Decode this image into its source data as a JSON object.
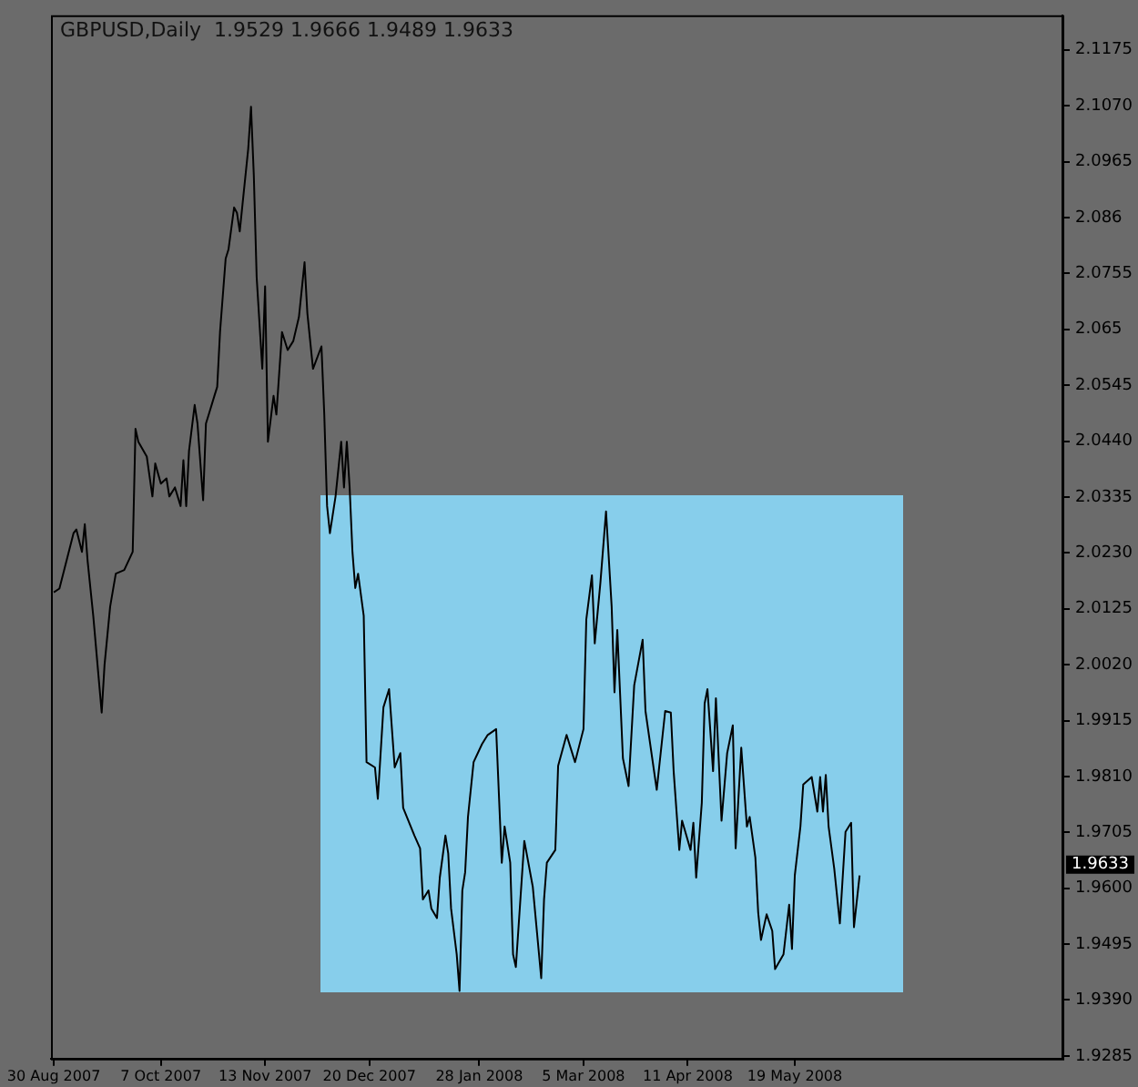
{
  "chart_data": {
    "type": "line",
    "title": "GBPUSD,Daily  1.9529 1.9666 1.9489 1.9633",
    "x": [
      "2007-08-30",
      "2007-09-01",
      "2007-09-06",
      "2007-09-07",
      "2007-09-09",
      "2007-09-10",
      "2007-09-11",
      "2007-09-13",
      "2007-09-16",
      "2007-09-17",
      "2007-09-19",
      "2007-09-21",
      "2007-09-24",
      "2007-09-27",
      "2007-09-28",
      "2007-09-29",
      "2007-10-02",
      "2007-10-04",
      "2007-10-05",
      "2007-10-07",
      "2007-10-09",
      "2007-10-10",
      "2007-10-12",
      "2007-10-14",
      "2007-10-15",
      "2007-10-16",
      "2007-10-17",
      "2007-10-19",
      "2007-10-20",
      "2007-10-22",
      "2007-10-23",
      "2007-10-24",
      "2007-10-26",
      "2007-10-27",
      "2007-10-28",
      "2007-10-30",
      "2007-10-31",
      "2007-11-02",
      "2007-11-03",
      "2007-11-04",
      "2007-11-05",
      "2007-11-07",
      "2007-11-08",
      "2007-11-09",
      "2007-11-10",
      "2007-11-12",
      "2007-11-13",
      "2007-11-14",
      "2007-11-16",
      "2007-11-17",
      "2007-11-19",
      "2007-11-21",
      "2007-11-23",
      "2007-11-25",
      "2007-11-27",
      "2007-11-28",
      "2007-11-30",
      "2007-12-03",
      "2007-12-04",
      "2007-12-05",
      "2007-12-06",
      "2007-12-08",
      "2007-12-10",
      "2007-12-11",
      "2007-12-12",
      "2007-12-13",
      "2007-12-14",
      "2007-12-15",
      "2007-12-16",
      "2007-12-18",
      "2007-12-19",
      "2007-12-22",
      "2007-12-23",
      "2007-12-25",
      "2007-12-27",
      "2007-12-29",
      "2007-12-31",
      "2008-01-01",
      "2008-01-05",
      "2008-01-07",
      "2008-01-08",
      "2008-01-10",
      "2008-01-11",
      "2008-01-13",
      "2008-01-14",
      "2008-01-16",
      "2008-01-17",
      "2008-01-18",
      "2008-01-20",
      "2008-01-21",
      "2008-01-22",
      "2008-01-23",
      "2008-01-24",
      "2008-01-26",
      "2008-01-29",
      "2008-01-31",
      "2008-02-03",
      "2008-02-05",
      "2008-02-06",
      "2008-02-08",
      "2008-02-09",
      "2008-02-10",
      "2008-02-13",
      "2008-02-16",
      "2008-02-19",
      "2008-02-20",
      "2008-02-21",
      "2008-02-24",
      "2008-02-25",
      "2008-02-28",
      "2008-03-02",
      "2008-03-05",
      "2008-03-06",
      "2008-03-08",
      "2008-03-09",
      "2008-03-11",
      "2008-03-13",
      "2008-03-15",
      "2008-03-16",
      "2008-03-17",
      "2008-03-19",
      "2008-03-21",
      "2008-03-23",
      "2008-03-26",
      "2008-03-27",
      "2008-03-31",
      "2008-04-03",
      "2008-04-05",
      "2008-04-06",
      "2008-04-08",
      "2008-04-09",
      "2008-04-12",
      "2008-04-13",
      "2008-04-14",
      "2008-04-16",
      "2008-04-17",
      "2008-04-18",
      "2008-04-20",
      "2008-04-21",
      "2008-04-23",
      "2008-04-25",
      "2008-04-27",
      "2008-04-28",
      "2008-04-30",
      "2008-05-02",
      "2008-05-03",
      "2008-05-05",
      "2008-05-06",
      "2008-05-07",
      "2008-05-09",
      "2008-05-11",
      "2008-05-12",
      "2008-05-15",
      "2008-05-17",
      "2008-05-18",
      "2008-05-19",
      "2008-05-21",
      "2008-05-22",
      "2008-05-25",
      "2008-05-27",
      "2008-05-28",
      "2008-05-29",
      "2008-05-30",
      "2008-05-31",
      "2008-06-02",
      "2008-06-04",
      "2008-06-06",
      "2008-06-08",
      "2008-06-09",
      "2008-06-11"
    ],
    "series": [
      {
        "color": "#000000",
        "values": [
          2.0156,
          2.0163,
          2.0267,
          2.0274,
          2.0232,
          2.0284,
          2.0215,
          2.0112,
          1.993,
          2.0019,
          2.0129,
          2.0191,
          2.0198,
          2.0232,
          2.0463,
          2.0439,
          2.0411,
          2.0336,
          2.0398,
          2.036,
          2.037,
          2.0336,
          2.0353,
          2.0318,
          2.0404,
          2.0318,
          2.0422,
          2.0508,
          2.0473,
          2.0329,
          2.0473,
          2.049,
          2.0525,
          2.0542,
          2.0645,
          2.0783,
          2.08,
          2.0879,
          2.0869,
          2.0834,
          2.0886,
          2.0989,
          2.1068,
          2.0938,
          2.0748,
          2.0576,
          2.0731,
          2.0439,
          2.0525,
          2.049,
          2.0645,
          2.0611,
          2.0628,
          2.0673,
          2.0776,
          2.068,
          2.0576,
          2.0618,
          2.049,
          2.0318,
          2.0267,
          2.0336,
          2.0439,
          2.0353,
          2.0439,
          2.0353,
          2.0232,
          2.0164,
          2.0191,
          2.0112,
          1.9837,
          1.9827,
          1.9768,
          1.994,
          1.9974,
          1.9827,
          1.9854,
          1.9751,
          1.9699,
          1.9675,
          1.9579,
          1.9596,
          1.9562,
          1.9544,
          1.962,
          1.9699,
          1.9665,
          1.9562,
          1.9476,
          1.9407,
          1.9596,
          1.963,
          1.9734,
          1.9837,
          1.9871,
          1.9888,
          1.9899,
          1.9648,
          1.9716,
          1.9648,
          1.9476,
          1.9452,
          1.9689,
          1.9603,
          1.9431,
          1.9579,
          1.9648,
          1.9672,
          1.983,
          1.9888,
          1.9837,
          1.9899,
          2.0105,
          2.0188,
          2.006,
          2.0174,
          2.0308,
          2.0129,
          1.9968,
          2.0085,
          1.9844,
          1.9792,
          1.9981,
          2.0067,
          1.9933,
          1.9785,
          1.9933,
          1.993,
          1.982,
          1.9672,
          1.9727,
          1.9672,
          1.9723,
          1.962,
          1.9761,
          1.9947,
          1.9974,
          1.982,
          1.9957,
          1.9727,
          1.9854,
          1.9906,
          1.9675,
          1.9864,
          1.9716,
          1.9734,
          1.9658,
          1.9555,
          1.9503,
          1.9551,
          1.952,
          1.9448,
          1.9476,
          1.9569,
          1.9486,
          1.9624,
          1.9716,
          1.9795,
          1.9809,
          1.9744,
          1.9809,
          1.9744,
          1.9813,
          1.9716,
          1.9637,
          1.9534,
          1.9706,
          1.9723,
          1.9527,
          1.9624
        ]
      }
    ],
    "xlim": [
      "2007-08-29",
      "2008-08-22"
    ],
    "xticks": [
      {
        "value": "2007-08-30",
        "label": "30 Aug 2007"
      },
      {
        "value": "2007-10-07",
        "label": "7 Oct 2007"
      },
      {
        "value": "2007-11-13",
        "label": "13 Nov 2007"
      },
      {
        "value": "2007-12-20",
        "label": "20 Dec 2007"
      },
      {
        "value": "2008-01-28",
        "label": "28 Jan 2008"
      },
      {
        "value": "2008-03-05",
        "label": "5 Mar 2008"
      },
      {
        "value": "2008-04-11",
        "label": "11 Apr 2008"
      },
      {
        "value": "2008-05-19",
        "label": "19 May 2008"
      }
    ],
    "ylim": [
      1.928,
      2.124
    ],
    "yticks": [
      2.1175,
      {
        "value": 2.107,
        "label": "2.1070"
      },
      2.0965,
      2.086,
      2.0755,
      2.065,
      2.0545,
      {
        "value": 2.044,
        "label": "2.0440"
      },
      2.0335,
      {
        "value": 2.023,
        "label": "2.0230"
      },
      2.0125,
      {
        "value": 2.002,
        "label": "2.0020"
      },
      1.9915,
      {
        "value": 1.981,
        "label": "1.9810"
      },
      1.9705,
      {
        "value": 1.96,
        "label": "1.9600"
      },
      1.9495,
      {
        "value": 1.939,
        "label": "1.9390"
      },
      1.9285
    ],
    "annotations": [
      "1.9633"
    ]
  }
}
